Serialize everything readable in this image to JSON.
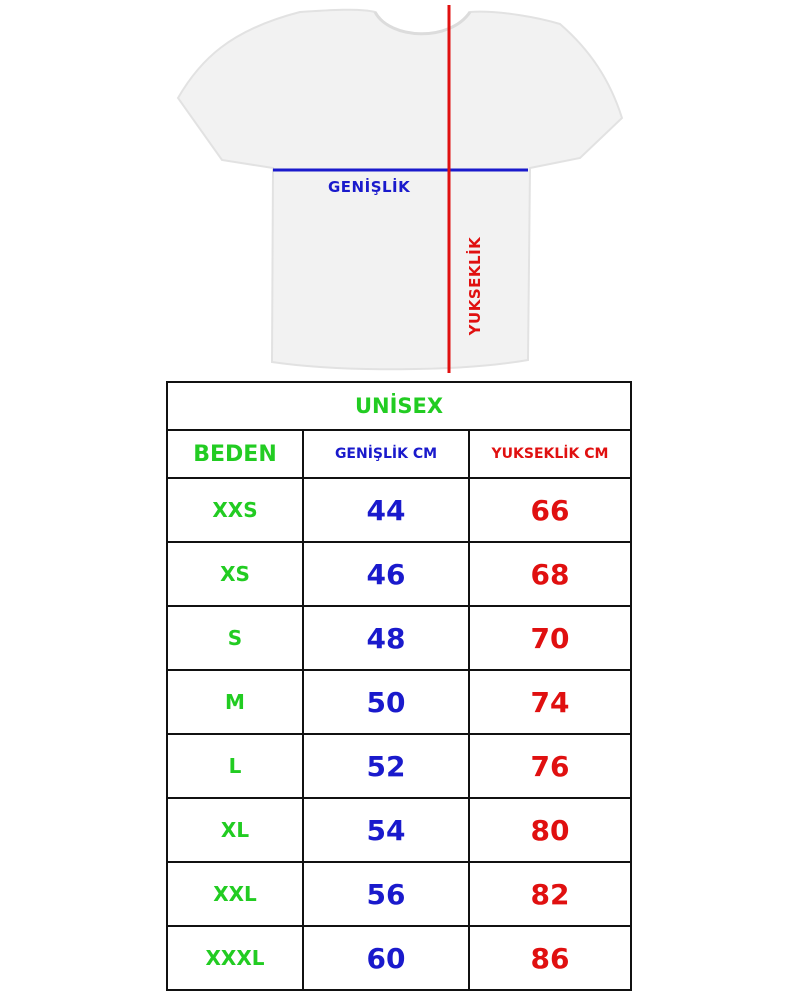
{
  "diagram": {
    "width_label": "GENİŞLİK",
    "height_label": "YUKSEKLİK",
    "width_line_color": "#1a1acc",
    "height_line_color": "#e01010",
    "garment_icon": "t-shirt"
  },
  "table": {
    "title": "UNİSEX",
    "headers": [
      "BEDEN",
      "GENİŞLİK CM",
      "YUKSEKLİK CM"
    ],
    "rows": [
      {
        "size": "XXS",
        "width": "44",
        "height": "66"
      },
      {
        "size": "XS",
        "width": "46",
        "height": "68"
      },
      {
        "size": "S",
        "width": "48",
        "height": "70"
      },
      {
        "size": "M",
        "width": "50",
        "height": "74"
      },
      {
        "size": "L",
        "width": "52",
        "height": "76"
      },
      {
        "size": "XL",
        "width": "54",
        "height": "80"
      },
      {
        "size": "XXL",
        "width": "56",
        "height": "82"
      },
      {
        "size": "XXXL",
        "width": "60",
        "height": "86"
      }
    ],
    "colors": {
      "size": "#22cc22",
      "width": "#1a1acc",
      "height": "#e01010"
    }
  }
}
